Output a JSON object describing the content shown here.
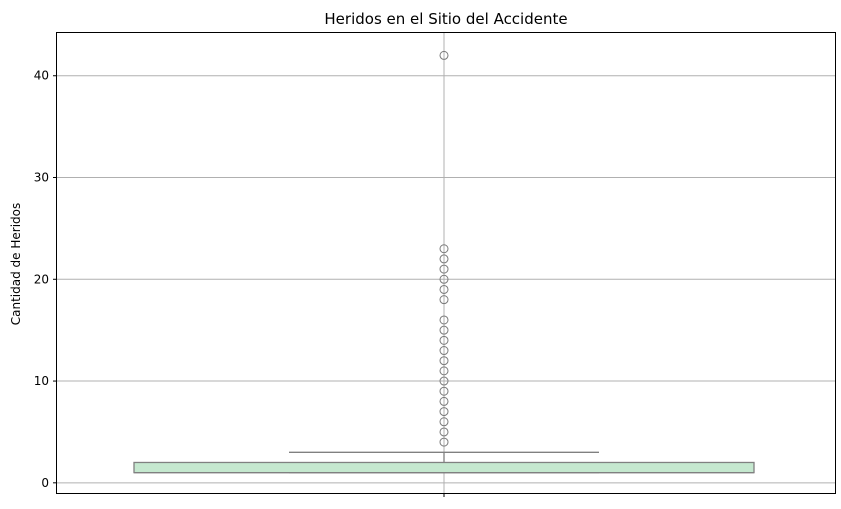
{
  "chart_data": {
    "type": "box",
    "title": "Heridos en el Sitio del Accidente",
    "xlabel": "",
    "ylabel": "Cantidad de Heridos",
    "ylim": [
      -1,
      44.2
    ],
    "yticks": [
      0,
      10,
      20,
      30,
      40
    ],
    "grid": true,
    "box_color": "#c5e8cf",
    "edge_color": "#808080",
    "box": {
      "q1": 1,
      "median": 1,
      "q3": 2,
      "whisker_low": 1,
      "whisker_high": 3
    },
    "outliers": [
      4,
      5,
      6,
      7,
      8,
      9,
      10,
      11,
      12,
      13,
      14,
      15,
      16,
      18,
      19,
      20,
      21,
      22,
      23,
      42
    ]
  }
}
